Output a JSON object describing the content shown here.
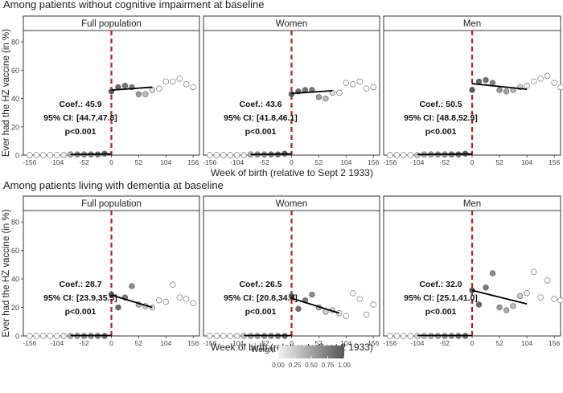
{
  "figure": {
    "y_axis_label": "Ever had the HZ vaccine (in %)",
    "x_axis_label": "Week of birth (relative to Sept 2 1933)",
    "legend": {
      "title": "Weight",
      "labels": [
        "0.00",
        "0.25",
        "0.50",
        "0.75",
        "1.00"
      ],
      "color_low": "#f2f2f2",
      "color_high": "#555555"
    },
    "colors": {
      "cutoff_line": "#b22222",
      "strip_background": "#ffffff",
      "fit_line": "#000000"
    }
  },
  "chart_data": [
    {
      "type": "scatter",
      "title": "Among patients without cognitive impairment at baseline",
      "y_ticks": [
        "0",
        "20",
        "40",
        "60",
        "80"
      ],
      "x_ticks": [
        "-156",
        "-104",
        "-52",
        "0",
        "52",
        "104",
        "156"
      ],
      "ylim": [
        0,
        88
      ],
      "panels": [
        {
          "strip": "Full population",
          "xlim": [
            -168,
            168
          ],
          "cutoff": 0,
          "annotation": [
            "Coef.: 45.9",
            "95% CI: [44.7,47.8]",
            "p<0.001"
          ],
          "fit_left": {
            "x": [
              -78,
              0
            ],
            "y": [
              0.4,
              0.9
            ]
          },
          "fit_right": {
            "x": [
              0,
              78
            ],
            "y": [
              45.9,
              48.0
            ]
          },
          "points": [
            [
              -156,
              0,
              0
            ],
            [
              -143,
              0,
              0
            ],
            [
              -130,
              0,
              0
            ],
            [
              -117,
              0,
              0
            ],
            [
              -104,
              0,
              0
            ],
            [
              -91,
              0,
              0.1
            ],
            [
              -78,
              0.5,
              0.5
            ],
            [
              -65,
              0.5,
              0.7
            ],
            [
              -52,
              0.5,
              0.7
            ],
            [
              -39,
              0.5,
              0.8
            ],
            [
              -26,
              0.5,
              0.9
            ],
            [
              -13,
              1,
              0.95
            ],
            [
              0,
              45,
              1
            ],
            [
              13,
              48,
              0.9
            ],
            [
              26,
              49,
              0.85
            ],
            [
              39,
              48,
              0.8
            ],
            [
              52,
              43,
              0.6
            ],
            [
              65,
              43,
              0.4
            ],
            [
              78,
              46,
              0.2
            ],
            [
              91,
              47,
              0.05
            ],
            [
              104,
              52,
              0
            ],
            [
              117,
              52,
              0
            ],
            [
              130,
              54,
              0
            ],
            [
              143,
              50,
              0
            ],
            [
              156,
              48,
              0
            ]
          ]
        },
        {
          "strip": "Women",
          "xlim": [
            -168,
            168
          ],
          "cutoff": 0,
          "annotation": [
            "Coef.: 43.6",
            "95% CI: [41.8,46.1]",
            "p<0.001"
          ],
          "fit_left": {
            "x": [
              -78,
              0
            ],
            "y": [
              0.4,
              0.9
            ]
          },
          "fit_right": {
            "x": [
              0,
              78
            ],
            "y": [
              43.6,
              45.5
            ]
          },
          "points": [
            [
              -156,
              0,
              0
            ],
            [
              -143,
              0,
              0
            ],
            [
              -130,
              0,
              0
            ],
            [
              -117,
              0,
              0
            ],
            [
              -104,
              0,
              0
            ],
            [
              -91,
              0,
              0.1
            ],
            [
              -78,
              0.5,
              0.5
            ],
            [
              -65,
              0.5,
              0.7
            ],
            [
              -52,
              0.5,
              0.7
            ],
            [
              -39,
              0.5,
              0.8
            ],
            [
              -26,
              0.5,
              0.9
            ],
            [
              -13,
              1,
              0.95
            ],
            [
              0,
              43,
              1
            ],
            [
              13,
              45,
              0.9
            ],
            [
              26,
              46,
              0.85
            ],
            [
              39,
              46,
              0.8
            ],
            [
              52,
              41,
              0.6
            ],
            [
              65,
              40,
              0.4
            ],
            [
              78,
              44,
              0.2
            ],
            [
              91,
              44,
              0.05
            ],
            [
              104,
              51,
              0
            ],
            [
              117,
              50,
              0
            ],
            [
              130,
              52,
              0
            ],
            [
              143,
              47,
              0
            ],
            [
              156,
              48,
              0
            ]
          ]
        },
        {
          "strip": "Men",
          "xlim": [
            -168,
            168
          ],
          "cutoff": 0,
          "annotation": [
            "Coef.: 50.5",
            "95% CI: [48.8,52.9]",
            "p<0.001"
          ],
          "fit_left": {
            "x": [
              -104,
              0
            ],
            "y": [
              0.4,
              0.9
            ]
          },
          "fit_right": {
            "x": [
              0,
              104
            ],
            "y": [
              50.5,
              46.5
            ]
          },
          "points": [
            [
              -156,
              0,
              0
            ],
            [
              -143,
              0,
              0
            ],
            [
              -130,
              0,
              0
            ],
            [
              -117,
              0,
              0
            ],
            [
              -104,
              0,
              0.3
            ],
            [
              -91,
              0.5,
              0.5
            ],
            [
              -78,
              0.5,
              0.6
            ],
            [
              -65,
              0.5,
              0.7
            ],
            [
              -52,
              0.5,
              0.7
            ],
            [
              -39,
              0.5,
              0.8
            ],
            [
              -26,
              0.5,
              0.9
            ],
            [
              -13,
              1,
              0.95
            ],
            [
              0,
              46,
              1
            ],
            [
              13,
              52,
              0.9
            ],
            [
              26,
              53,
              0.85
            ],
            [
              39,
              51,
              0.75
            ],
            [
              52,
              46,
              0.65
            ],
            [
              65,
              45,
              0.55
            ],
            [
              78,
              46,
              0.45
            ],
            [
              91,
              48,
              0.3
            ],
            [
              104,
              49,
              0.1
            ],
            [
              117,
              52,
              0
            ],
            [
              130,
              54,
              0
            ],
            [
              143,
              56,
              0
            ],
            [
              156,
              51,
              0
            ],
            [
              168,
              48,
              0
            ]
          ]
        }
      ]
    },
    {
      "type": "scatter",
      "title": "Among patients living with dementia at baseline",
      "y_ticks": [
        "0",
        "20",
        "40",
        "60",
        "80"
      ],
      "x_ticks": [
        "-156",
        "-104",
        "-52",
        "0",
        "52",
        "104",
        "156"
      ],
      "ylim": [
        0,
        88
      ],
      "panels": [
        {
          "strip": "Full population",
          "xlim": [
            -168,
            168
          ],
          "cutoff": 0,
          "annotation": [
            "Coef.: 28.7",
            "95% CI: [23.9,35.5]",
            "p<0.001"
          ],
          "fit_left": {
            "x": [
              -78,
              0
            ],
            "y": [
              0.3,
              0.3
            ]
          },
          "fit_right": {
            "x": [
              0,
              78
            ],
            "y": [
              28.7,
              20.0
            ]
          },
          "points": [
            [
              -156,
              0,
              0
            ],
            [
              -143,
              0,
              0
            ],
            [
              -130,
              0,
              0
            ],
            [
              -117,
              0,
              0
            ],
            [
              -104,
              0,
              0
            ],
            [
              -91,
              0,
              0.1
            ],
            [
              -78,
              0,
              0.5
            ],
            [
              -65,
              0,
              0.6
            ],
            [
              -52,
              0,
              0.7
            ],
            [
              -39,
              0,
              0.7
            ],
            [
              -26,
              0,
              0.8
            ],
            [
              -13,
              0,
              0.9
            ],
            [
              0,
              29,
              1
            ],
            [
              13,
              20,
              0.9
            ],
            [
              26,
              27,
              0.8
            ],
            [
              39,
              35,
              0.7
            ],
            [
              52,
              22,
              0.5
            ],
            [
              65,
              21,
              0.3
            ],
            [
              78,
              20,
              0.2
            ],
            [
              91,
              25,
              0.05
            ],
            [
              104,
              24,
              0
            ],
            [
              117,
              36,
              0
            ],
            [
              130,
              27,
              0
            ],
            [
              143,
              26,
              0
            ],
            [
              156,
              23,
              0
            ]
          ]
        },
        {
          "strip": "Women",
          "xlim": [
            -168,
            168
          ],
          "cutoff": 0,
          "annotation": [
            "Coef.: 26.5",
            "95% CI: [20.8,34.4]",
            "p<0.001"
          ],
          "fit_left": {
            "x": [
              -91,
              0
            ],
            "y": [
              0.3,
              0.3
            ]
          },
          "fit_right": {
            "x": [
              0,
              91
            ],
            "y": [
              26.5,
              16.0
            ]
          },
          "points": [
            [
              -156,
              0,
              0
            ],
            [
              -143,
              0,
              0
            ],
            [
              -130,
              0,
              0
            ],
            [
              -117,
              0,
              0
            ],
            [
              -104,
              0,
              0.1
            ],
            [
              -91,
              0,
              0.3
            ],
            [
              -78,
              0,
              0.5
            ],
            [
              -65,
              0,
              0.6
            ],
            [
              -52,
              0,
              0.7
            ],
            [
              -39,
              0,
              0.7
            ],
            [
              -26,
              0,
              0.8
            ],
            [
              -13,
              0,
              0.9
            ],
            [
              0,
              28,
              1
            ],
            [
              13,
              19,
              0.85
            ],
            [
              26,
              25,
              0.8
            ],
            [
              39,
              29,
              0.7
            ],
            [
              52,
              20,
              0.5
            ],
            [
              65,
              17,
              0.3
            ],
            [
              78,
              18,
              0.2
            ],
            [
              91,
              16,
              0.1
            ],
            [
              104,
              14,
              0
            ],
            [
              117,
              30,
              0
            ],
            [
              130,
              26,
              0
            ],
            [
              143,
              15,
              0
            ],
            [
              156,
              22,
              0
            ]
          ]
        },
        {
          "strip": "Men",
          "xlim": [
            -168,
            168
          ],
          "cutoff": 0,
          "annotation": [
            "Coef.: 32.0",
            "95% CI: [25.1,41.0]",
            "p<0.001"
          ],
          "fit_left": {
            "x": [
              -104,
              0
            ],
            "y": [
              0.3,
              0.3
            ]
          },
          "fit_right": {
            "x": [
              0,
              104
            ],
            "y": [
              32.0,
              22.5
            ]
          },
          "points": [
            [
              -156,
              0,
              0
            ],
            [
              -143,
              0,
              0
            ],
            [
              -130,
              0,
              0
            ],
            [
              -117,
              0,
              0
            ],
            [
              -104,
              0,
              0.2
            ],
            [
              -91,
              0,
              0.4
            ],
            [
              -78,
              0,
              0.5
            ],
            [
              -65,
              0,
              0.6
            ],
            [
              -52,
              0,
              0.7
            ],
            [
              -39,
              0,
              0.7
            ],
            [
              -26,
              0,
              0.8
            ],
            [
              -13,
              0,
              0.9
            ],
            [
              0,
              32,
              1
            ],
            [
              13,
              22,
              0.9
            ],
            [
              26,
              34,
              0.8
            ],
            [
              39,
              44,
              0.7
            ],
            [
              52,
              20,
              0.6
            ],
            [
              65,
              18,
              0.5
            ],
            [
              78,
              21,
              0.4
            ],
            [
              91,
              28,
              0.3
            ],
            [
              104,
              30,
              0.1
            ],
            [
              117,
              45,
              0
            ],
            [
              130,
              27,
              0
            ],
            [
              143,
              39,
              0
            ],
            [
              156,
              26,
              0
            ],
            [
              168,
              25,
              0
            ]
          ]
        }
      ]
    }
  ]
}
